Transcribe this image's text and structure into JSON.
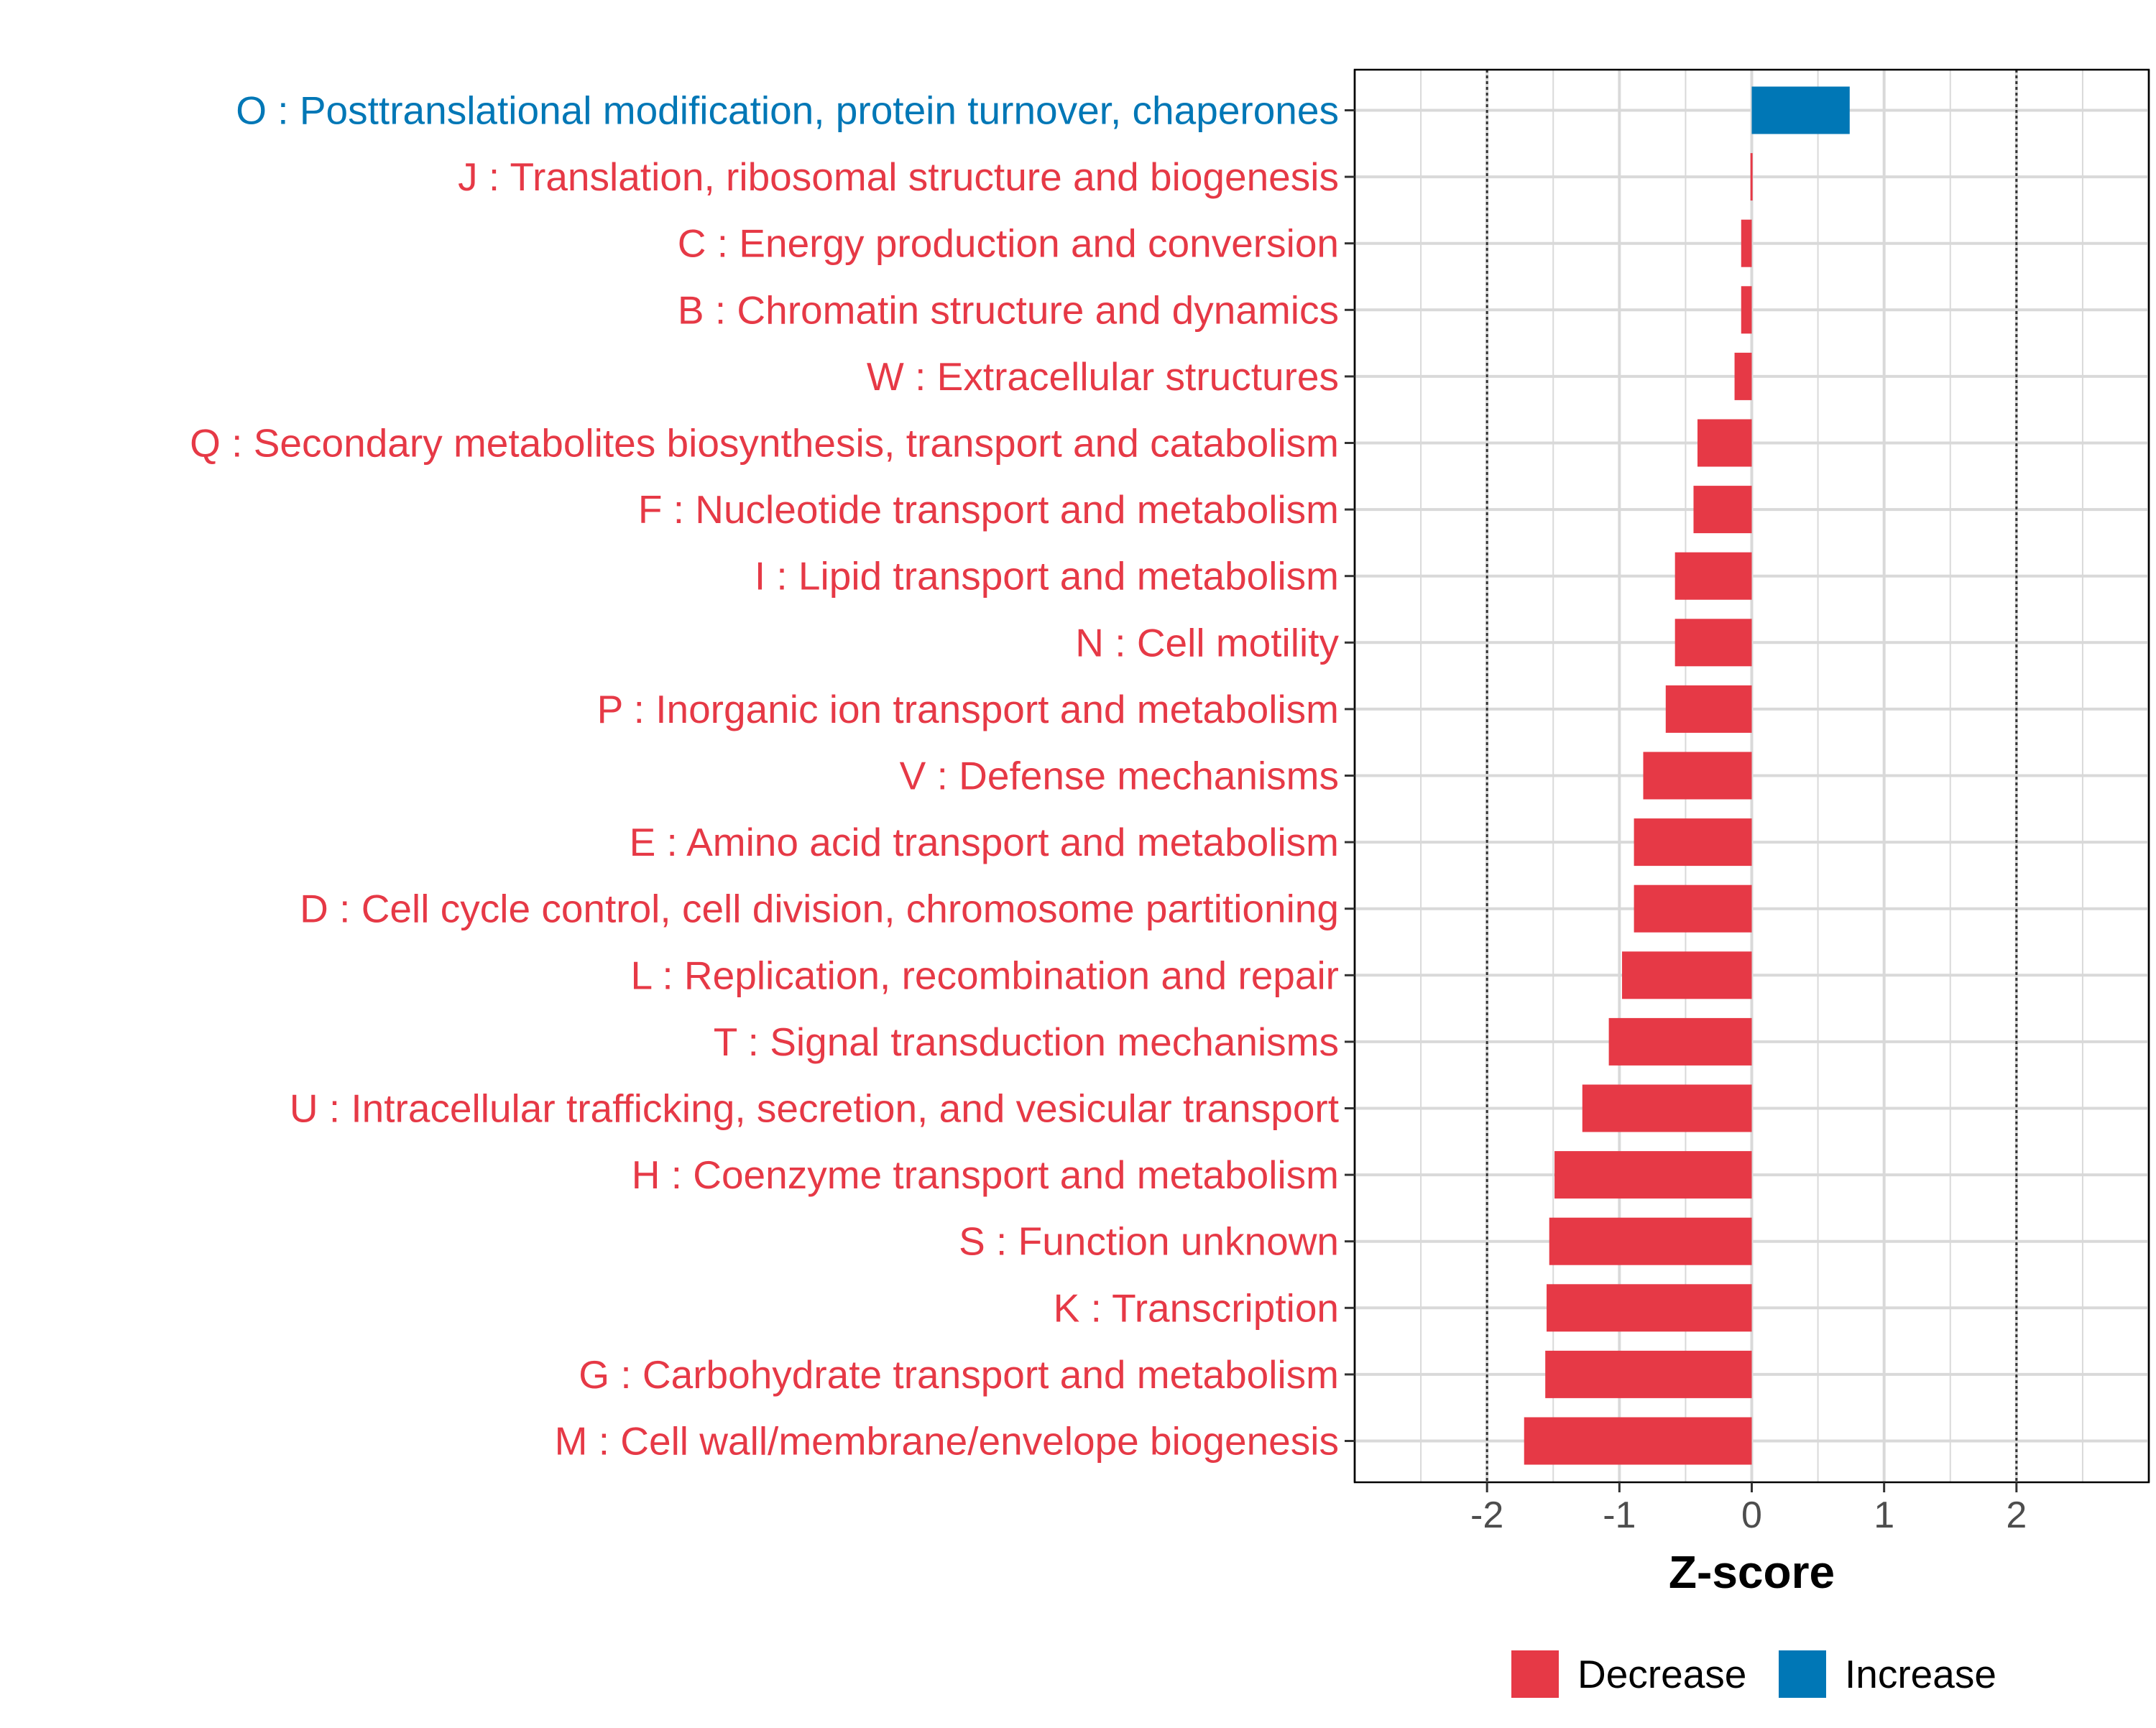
{
  "chart_data": {
    "type": "bar",
    "orientation": "horizontal",
    "title": "",
    "xlabel": "Z-score",
    "ylabel": "",
    "xlim": [
      -3,
      3
    ],
    "x_ticks": [
      -2,
      -1,
      0,
      1,
      2
    ],
    "x_tick_labels": [
      "-2",
      "-1",
      "0",
      "1",
      "2"
    ],
    "reference_lines": [
      -2,
      2
    ],
    "grid": true,
    "legend": {
      "position": "bottom",
      "entries": [
        {
          "label": "Decrease",
          "color": "#E63946"
        },
        {
          "label": "Increase",
          "color": "#0077B6"
        }
      ]
    },
    "colors": {
      "Decrease": "#E63946",
      "Increase": "#0077B6"
    },
    "categories": [
      "O : Posttranslational modification, protein turnover, chaperones",
      "J : Translation, ribosomal structure and biogenesis",
      "C : Energy production and conversion",
      "B : Chromatin structure and dynamics",
      "W : Extracellular structures",
      "Q : Secondary metabolites biosynthesis, transport and catabolism",
      "F : Nucleotide transport and metabolism",
      "I : Lipid transport and metabolism",
      "N : Cell motility",
      "P : Inorganic ion transport and metabolism",
      "V : Defense mechanisms",
      "E : Amino acid transport and metabolism",
      "D : Cell cycle control, cell division, chromosome partitioning",
      "L : Replication, recombination and repair",
      "T : Signal transduction mechanisms",
      "U : Intracellular trafficking, secretion, and vesicular transport",
      "H : Coenzyme transport and metabolism",
      "S : Function unknown",
      "K : Transcription",
      "G : Carbohydrate transport and metabolism",
      "M : Cell wall/membrane/envelope biogenesis"
    ],
    "values": [
      0.74,
      -0.01,
      -0.08,
      -0.08,
      -0.13,
      -0.41,
      -0.44,
      -0.58,
      -0.58,
      -0.65,
      -0.82,
      -0.89,
      -0.89,
      -0.98,
      -1.08,
      -1.28,
      -1.49,
      -1.53,
      -1.55,
      -1.56,
      -1.72
    ],
    "groups": [
      "Increase",
      "Decrease",
      "Decrease",
      "Decrease",
      "Decrease",
      "Decrease",
      "Decrease",
      "Decrease",
      "Decrease",
      "Decrease",
      "Decrease",
      "Decrease",
      "Decrease",
      "Decrease",
      "Decrease",
      "Decrease",
      "Decrease",
      "Decrease",
      "Decrease",
      "Decrease",
      "Decrease"
    ]
  }
}
